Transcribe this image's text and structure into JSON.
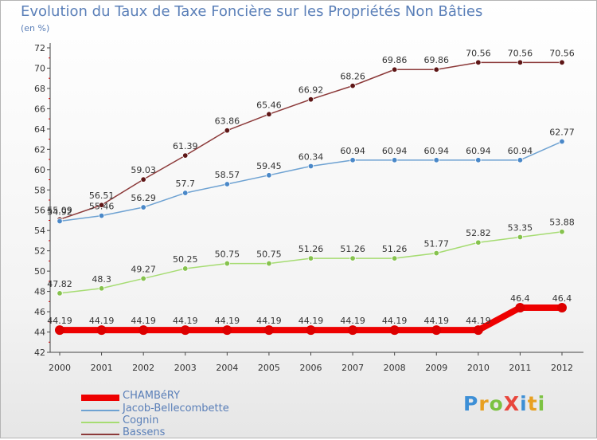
{
  "title": "Evolution du Taux de Taxe Foncière sur les Propriétés Non Bâties",
  "subtitle": "(en %)",
  "logo": {
    "text": "ProXiti",
    "colors": [
      "#3d8fd6",
      "#e8a020",
      "#7cc242",
      "#e8463c",
      "#3d8fd6",
      "#e8a020",
      "#7cc242"
    ]
  },
  "chart_data": {
    "type": "line",
    "title": "Evolution du Taux de Taxe Foncière sur les Propriétés Non Bâties",
    "ylabel": "(en %)",
    "xlabel": "",
    "x": [
      "2000",
      "2001",
      "2002",
      "2003",
      "2004",
      "2005",
      "2006",
      "2007",
      "2008",
      "2009",
      "2010",
      "2011",
      "2012"
    ],
    "ylim": [
      42,
      72
    ],
    "yticks": [
      42,
      44,
      46,
      48,
      50,
      52,
      54,
      56,
      58,
      60,
      62,
      64,
      66,
      68,
      70,
      72
    ],
    "grid": false,
    "legend_position": "bottom-left",
    "series": [
      {
        "name": "CHAMBéRY",
        "color": "#ee0000",
        "marker": "#dd0000",
        "width": 8,
        "values": [
          44.19,
          44.19,
          44.19,
          44.19,
          44.19,
          44.19,
          44.19,
          44.19,
          44.19,
          44.19,
          44.19,
          46.4,
          46.4
        ],
        "labels": [
          "44.19",
          "44.19",
          "44.19",
          "44.19",
          "44.19",
          "44.19",
          "44.19",
          "44.19",
          "44.19",
          "44.19",
          "44.19",
          "46.4",
          "46.4"
        ]
      },
      {
        "name": "Jacob-Bellecombette",
        "color": "#6ea2d2",
        "marker": "#4a88c8",
        "width": 1.5,
        "values": [
          54.92,
          55.46,
          56.29,
          57.7,
          58.57,
          59.45,
          60.34,
          60.94,
          60.94,
          60.94,
          60.94,
          60.94,
          62.77
        ],
        "labels": [
          "54.92",
          "55.46",
          "56.29",
          "57.7",
          "58.57",
          "59.45",
          "60.34",
          "60.94",
          "60.94",
          "60.94",
          "60.94",
          "60.94",
          "62.77"
        ]
      },
      {
        "name": "Cognin",
        "color": "#a6dc72",
        "marker": "#86c24e",
        "width": 1.5,
        "values": [
          47.82,
          48.3,
          49.27,
          50.25,
          50.75,
          50.75,
          51.26,
          51.26,
          51.26,
          51.77,
          52.82,
          53.35,
          53.88
        ],
        "labels": [
          "47.82",
          "48.3",
          "49.27",
          "50.25",
          "50.75",
          "50.75",
          "51.26",
          "51.26",
          "51.26",
          "51.77",
          "52.82",
          "53.35",
          "53.88"
        ]
      },
      {
        "name": "Bassens",
        "color": "#8c3a3a",
        "marker": "#5e1616",
        "width": 1.5,
        "values": [
          55.09,
          56.51,
          59.03,
          61.39,
          63.86,
          65.46,
          66.92,
          68.26,
          69.86,
          69.86,
          70.56,
          70.56,
          70.56
        ],
        "labels": [
          "55.09",
          "56.51",
          "59.03",
          "61.39",
          "63.86",
          "65.46",
          "66.92",
          "68.26",
          "69.86",
          "69.86",
          "70.56",
          "70.56",
          "70.56"
        ]
      }
    ]
  }
}
